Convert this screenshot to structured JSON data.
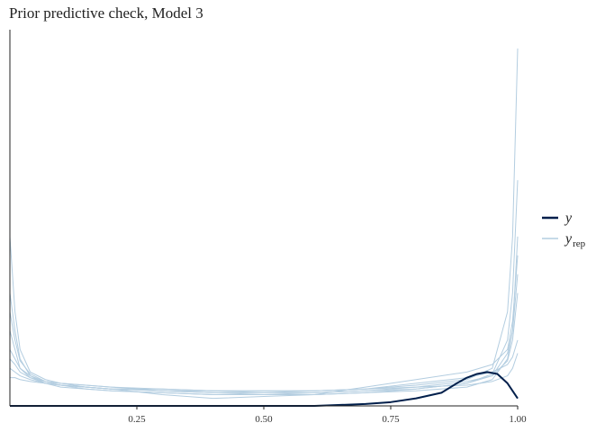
{
  "chart_data": {
    "type": "line",
    "title": "Prior predictive check, Model 3",
    "xlabel": "",
    "ylabel": "",
    "xlim": [
      0,
      1
    ],
    "ylim": [
      0,
      1
    ],
    "x_ticks": [
      0.25,
      0.5,
      0.75,
      1.0
    ],
    "x_tick_labels": [
      "0.25",
      "0.50",
      "0.75",
      "1.00"
    ],
    "legend": {
      "placement": "right",
      "items": [
        {
          "label": "y",
          "subscript": "",
          "color": "#011f4b"
        },
        {
          "label": "y",
          "subscript": "rep",
          "color": "#b3cde0"
        }
      ]
    },
    "series": [
      {
        "role": "y",
        "color": "#011f4b",
        "x": [
          0.0,
          0.05,
          0.1,
          0.15,
          0.2,
          0.3,
          0.4,
          0.5,
          0.6,
          0.7,
          0.75,
          0.8,
          0.85,
          0.88,
          0.9,
          0.92,
          0.94,
          0.96,
          0.98,
          1.0
        ],
        "values": [
          0.0,
          0.0,
          0.0,
          0.0,
          0.0,
          0.0,
          0.0,
          0.0,
          0.0,
          0.001,
          0.002,
          0.004,
          0.007,
          0.012,
          0.015,
          0.017,
          0.018,
          0.017,
          0.012,
          0.004
        ]
      },
      {
        "role": "yrep",
        "color": "#b3cde0",
        "x": [
          0.0,
          0.01,
          0.02,
          0.04,
          0.07,
          0.1,
          0.15,
          0.2,
          0.3,
          0.4,
          0.5,
          0.6,
          0.7,
          0.8,
          0.9,
          0.95,
          0.98,
          0.99,
          1.0
        ],
        "values": [
          0.09,
          0.05,
          0.03,
          0.018,
          0.014,
          0.012,
          0.01,
          0.009,
          0.008,
          0.008,
          0.008,
          0.008,
          0.009,
          0.011,
          0.014,
          0.02,
          0.05,
          0.09,
          0.19
        ]
      },
      {
        "role": "yrep",
        "color": "#b3cde0",
        "x": [
          0.0,
          0.01,
          0.02,
          0.04,
          0.07,
          0.1,
          0.15,
          0.2,
          0.3,
          0.4,
          0.5,
          0.6,
          0.7,
          0.8,
          0.9,
          0.95,
          0.98,
          0.99,
          1.0
        ],
        "values": [
          0.06,
          0.04,
          0.025,
          0.016,
          0.012,
          0.01,
          0.009,
          0.008,
          0.007,
          0.006,
          0.006,
          0.007,
          0.008,
          0.009,
          0.012,
          0.017,
          0.035,
          0.06,
          0.12
        ]
      },
      {
        "role": "yrep",
        "color": "#b3cde0",
        "x": [
          0.0,
          0.01,
          0.02,
          0.04,
          0.07,
          0.1,
          0.15,
          0.2,
          0.3,
          0.4,
          0.5,
          0.6,
          0.7,
          0.8,
          0.9,
          0.95,
          0.98,
          0.99,
          1.0
        ],
        "values": [
          0.04,
          0.03,
          0.02,
          0.015,
          0.012,
          0.011,
          0.01,
          0.009,
          0.006,
          0.004,
          0.005,
          0.006,
          0.01,
          0.014,
          0.018,
          0.022,
          0.03,
          0.045,
          0.08
        ]
      },
      {
        "role": "yrep",
        "color": "#b3cde0",
        "x": [
          0.0,
          0.01,
          0.02,
          0.04,
          0.07,
          0.1,
          0.15,
          0.2,
          0.3,
          0.4,
          0.5,
          0.6,
          0.7,
          0.8,
          0.9,
          0.95,
          0.98,
          0.99,
          1.0
        ],
        "values": [
          0.03,
          0.025,
          0.02,
          0.016,
          0.013,
          0.012,
          0.011,
          0.01,
          0.009,
          0.008,
          0.007,
          0.007,
          0.008,
          0.01,
          0.013,
          0.016,
          0.024,
          0.035,
          0.06
        ]
      },
      {
        "role": "yrep",
        "color": "#b3cde0",
        "x": [
          0.0,
          0.01,
          0.02,
          0.04,
          0.07,
          0.1,
          0.15,
          0.2,
          0.3,
          0.4,
          0.5,
          0.6,
          0.7,
          0.8,
          0.9,
          0.95,
          0.98,
          0.99,
          1.0
        ],
        "values": [
          0.025,
          0.022,
          0.018,
          0.015,
          0.013,
          0.012,
          0.011,
          0.01,
          0.008,
          0.007,
          0.006,
          0.006,
          0.007,
          0.009,
          0.012,
          0.016,
          0.028,
          0.04,
          0.07
        ]
      },
      {
        "role": "yrep",
        "color": "#b3cde0",
        "x": [
          0.0,
          0.01,
          0.02,
          0.04,
          0.07,
          0.1,
          0.15,
          0.2,
          0.3,
          0.4,
          0.5,
          0.6,
          0.7,
          0.8,
          0.9,
          0.95,
          0.98,
          0.99,
          1.0
        ],
        "values": [
          0.02,
          0.018,
          0.016,
          0.014,
          0.012,
          0.011,
          0.01,
          0.009,
          0.008,
          0.007,
          0.007,
          0.008,
          0.009,
          0.012,
          0.015,
          0.018,
          0.022,
          0.026,
          0.035
        ]
      },
      {
        "role": "yrep",
        "color": "#b3cde0",
        "x": [
          0.0,
          0.01,
          0.02,
          0.04,
          0.07,
          0.1,
          0.15,
          0.2,
          0.3,
          0.4,
          0.5,
          0.6,
          0.7,
          0.8,
          0.9,
          0.95,
          0.98,
          0.99,
          1.0
        ],
        "values": [
          0.015,
          0.015,
          0.014,
          0.013,
          0.012,
          0.011,
          0.01,
          0.009,
          0.009,
          0.008,
          0.008,
          0.008,
          0.009,
          0.01,
          0.011,
          0.013,
          0.016,
          0.02,
          0.028
        ]
      },
      {
        "role": "yrep",
        "color": "#b3cde0",
        "x": [
          0.0,
          0.01,
          0.02,
          0.04,
          0.07,
          0.1,
          0.15,
          0.2,
          0.3,
          0.4,
          0.5,
          0.6,
          0.7,
          0.8,
          0.9,
          0.95,
          0.98,
          0.99,
          1.0
        ],
        "values": [
          0.05,
          0.035,
          0.024,
          0.017,
          0.013,
          0.011,
          0.009,
          0.008,
          0.007,
          0.006,
          0.006,
          0.006,
          0.007,
          0.008,
          0.01,
          0.014,
          0.025,
          0.04,
          0.09
        ]
      }
    ]
  }
}
